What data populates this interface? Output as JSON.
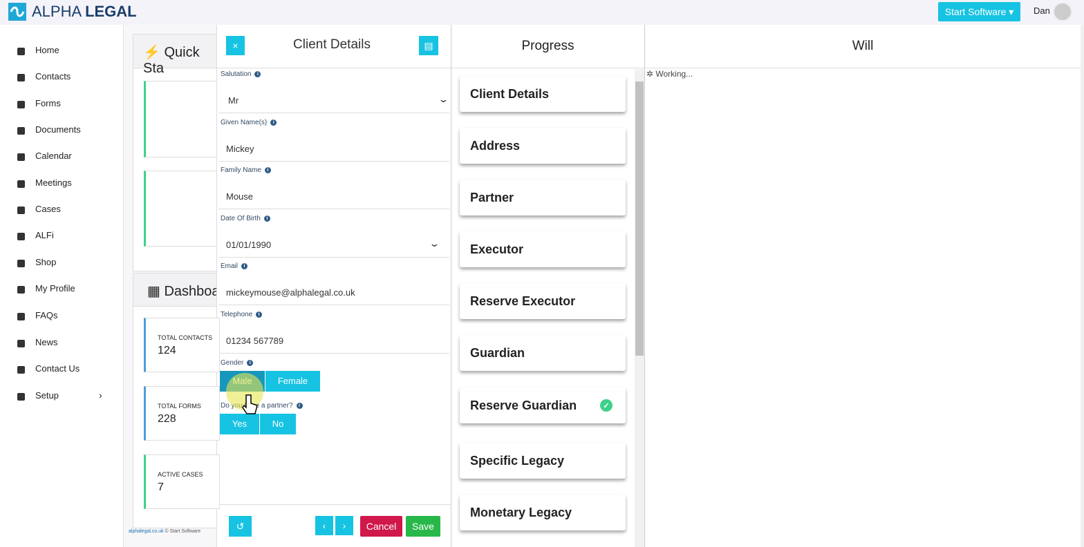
{
  "header": {
    "logo_light": "ALPHA",
    "logo_bold": "LEGAL",
    "button": "Start Software",
    "user": "Dan"
  },
  "sidebar": {
    "items": [
      "Home",
      "Contacts",
      "Forms",
      "Documents",
      "Calendar",
      "Meetings",
      "Cases",
      "ALFi",
      "Shop",
      "My Profile",
      "FAQs",
      "News",
      "Contact Us",
      "Setup"
    ]
  },
  "dashboard": {
    "quick_start": "Quick Sta",
    "dashboard": "Dashboa",
    "stats": [
      {
        "label": "TOTAL CONTACTS",
        "value": 124
      },
      {
        "label": "TOTAL FORMS",
        "value": 228
      },
      {
        "label": "ACTIVE CASES",
        "value": 7
      }
    ],
    "footer_link": "alphalegal.co.uk",
    "footer_text": "© Start Software"
  },
  "client_details": {
    "title": "Client Details",
    "fields": [
      {
        "label": "Salutation",
        "value": "Mr",
        "select": true
      },
      {
        "label": "Given Name(s)",
        "value": "Mickey",
        "select": false
      },
      {
        "label": "Family Name",
        "value": "Mouse",
        "select": false
      },
      {
        "label": "Date Of Birth",
        "value": "01/01/1990",
        "select": true
      },
      {
        "label": "Email",
        "value": "mickeymouse@alphalegal.co.uk",
        "select": false
      },
      {
        "label": "Telephone",
        "value": "01234 567789",
        "select": false
      }
    ],
    "gender": {
      "label": "Gender",
      "options": [
        "Male",
        "Female"
      ]
    },
    "partner": {
      "label": "Do you have a partner?",
      "options": [
        "Yes",
        "No"
      ]
    },
    "cancel": "Cancel",
    "save": "Save"
  },
  "progress": {
    "title": "Progress",
    "steps": [
      {
        "label": "Client Details",
        "done": false
      },
      {
        "label": "Address",
        "done": false
      },
      {
        "label": "Partner",
        "done": false
      },
      {
        "label": "Executor",
        "done": false
      },
      {
        "label": "Reserve Executor",
        "done": false
      },
      {
        "label": "Guardian",
        "done": false
      },
      {
        "label": "Reserve Guardian",
        "done": true
      },
      {
        "label": "Specific Legacy",
        "done": false
      },
      {
        "label": "Monetary Legacy",
        "done": false
      }
    ]
  },
  "will": {
    "title": "Will",
    "status": "Working..."
  }
}
